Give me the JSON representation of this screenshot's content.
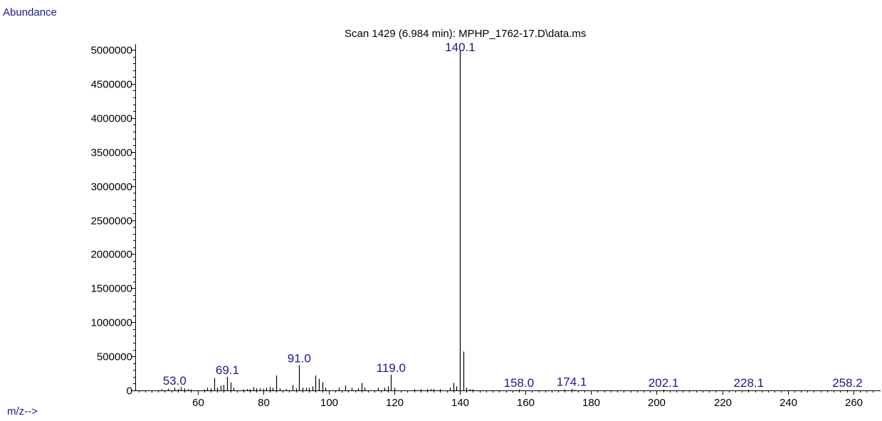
{
  "chart_data": {
    "type": "bar",
    "title": "Scan 1429 (6.984 min): MPHP_1762-17.D\\data.ms",
    "ylabel": "Abundance",
    "xlabel": "m/z-->",
    "xlim": [
      41,
      267
    ],
    "ylim": [
      0,
      5000000
    ],
    "x_ticks": [
      60,
      80,
      100,
      120,
      140,
      160,
      180,
      200,
      220,
      240,
      260
    ],
    "y_ticks": [
      0,
      500000,
      1000000,
      1500000,
      2000000,
      2500000,
      3000000,
      3500000,
      4000000,
      4500000,
      5000000
    ],
    "peaks": [
      {
        "x": 49,
        "y": 15000
      },
      {
        "x": 51,
        "y": 25000
      },
      {
        "x": 53,
        "y": 40000
      },
      {
        "x": 54,
        "y": 20000
      },
      {
        "x": 55,
        "y": 45000
      },
      {
        "x": 56,
        "y": 30000
      },
      {
        "x": 57,
        "y": 20000
      },
      {
        "x": 58,
        "y": 15000
      },
      {
        "x": 62,
        "y": 15000
      },
      {
        "x": 63,
        "y": 40000
      },
      {
        "x": 64,
        "y": 30000
      },
      {
        "x": 65,
        "y": 180000
      },
      {
        "x": 66,
        "y": 40000
      },
      {
        "x": 67,
        "y": 70000
      },
      {
        "x": 68,
        "y": 80000
      },
      {
        "x": 69,
        "y": 200000
      },
      {
        "x": 70,
        "y": 120000
      },
      {
        "x": 71,
        "y": 40000
      },
      {
        "x": 74,
        "y": 15000
      },
      {
        "x": 75,
        "y": 20000
      },
      {
        "x": 76,
        "y": 20000
      },
      {
        "x": 77,
        "y": 50000
      },
      {
        "x": 78,
        "y": 30000
      },
      {
        "x": 79,
        "y": 30000
      },
      {
        "x": 80,
        "y": 25000
      },
      {
        "x": 81,
        "y": 40000
      },
      {
        "x": 82,
        "y": 50000
      },
      {
        "x": 83,
        "y": 40000
      },
      {
        "x": 84,
        "y": 220000
      },
      {
        "x": 85,
        "y": 30000
      },
      {
        "x": 87,
        "y": 20000
      },
      {
        "x": 89,
        "y": 80000
      },
      {
        "x": 90,
        "y": 30000
      },
      {
        "x": 91,
        "y": 370000
      },
      {
        "x": 92,
        "y": 40000
      },
      {
        "x": 93,
        "y": 40000
      },
      {
        "x": 94,
        "y": 40000
      },
      {
        "x": 95,
        "y": 60000
      },
      {
        "x": 96,
        "y": 220000
      },
      {
        "x": 97,
        "y": 170000
      },
      {
        "x": 98,
        "y": 120000
      },
      {
        "x": 99,
        "y": 40000
      },
      {
        "x": 103,
        "y": 40000
      },
      {
        "x": 105,
        "y": 70000
      },
      {
        "x": 107,
        "y": 40000
      },
      {
        "x": 109,
        "y": 30000
      },
      {
        "x": 110,
        "y": 110000
      },
      {
        "x": 111,
        "y": 40000
      },
      {
        "x": 115,
        "y": 40000
      },
      {
        "x": 117,
        "y": 40000
      },
      {
        "x": 118,
        "y": 60000
      },
      {
        "x": 119,
        "y": 230000
      },
      {
        "x": 120,
        "y": 40000
      },
      {
        "x": 126,
        "y": 20000
      },
      {
        "x": 128,
        "y": 20000
      },
      {
        "x": 130,
        "y": 20000
      },
      {
        "x": 131,
        "y": 20000
      },
      {
        "x": 132,
        "y": 20000
      },
      {
        "x": 134,
        "y": 20000
      },
      {
        "x": 137,
        "y": 40000
      },
      {
        "x": 138,
        "y": 110000
      },
      {
        "x": 139,
        "y": 60000
      },
      {
        "x": 140,
        "y": 5000000
      },
      {
        "x": 141,
        "y": 570000
      },
      {
        "x": 142,
        "y": 40000
      },
      {
        "x": 143,
        "y": 20000
      },
      {
        "x": 144,
        "y": 15000
      },
      {
        "x": 158,
        "y": 12000
      },
      {
        "x": 172,
        "y": 15000
      },
      {
        "x": 174,
        "y": 25000
      },
      {
        "x": 175,
        "y": 10000
      },
      {
        "x": 202,
        "y": 10000
      },
      {
        "x": 228,
        "y": 8000
      },
      {
        "x": 258,
        "y": 8000
      }
    ],
    "peak_labels": [
      {
        "x": 53.0,
        "y": 40000,
        "text": "53.0"
      },
      {
        "x": 69.1,
        "y": 200000,
        "text": "69.1"
      },
      {
        "x": 91.0,
        "y": 370000,
        "text": "91.0"
      },
      {
        "x": 119.0,
        "y": 230000,
        "text": "119.0"
      },
      {
        "x": 140.1,
        "y": 5000000,
        "text": "140.1"
      },
      {
        "x": 158.0,
        "y": 12000,
        "text": "158.0"
      },
      {
        "x": 174.1,
        "y": 25000,
        "text": "174.1"
      },
      {
        "x": 202.1,
        "y": 10000,
        "text": "202.1"
      },
      {
        "x": 228.1,
        "y": 8000,
        "text": "228.1"
      },
      {
        "x": 258.2,
        "y": 8000,
        "text": "258.2"
      }
    ],
    "colors": {
      "bars": "#000000",
      "peak_labels": "#1a1a8c",
      "axis_labels": "#1a1a8c"
    }
  }
}
